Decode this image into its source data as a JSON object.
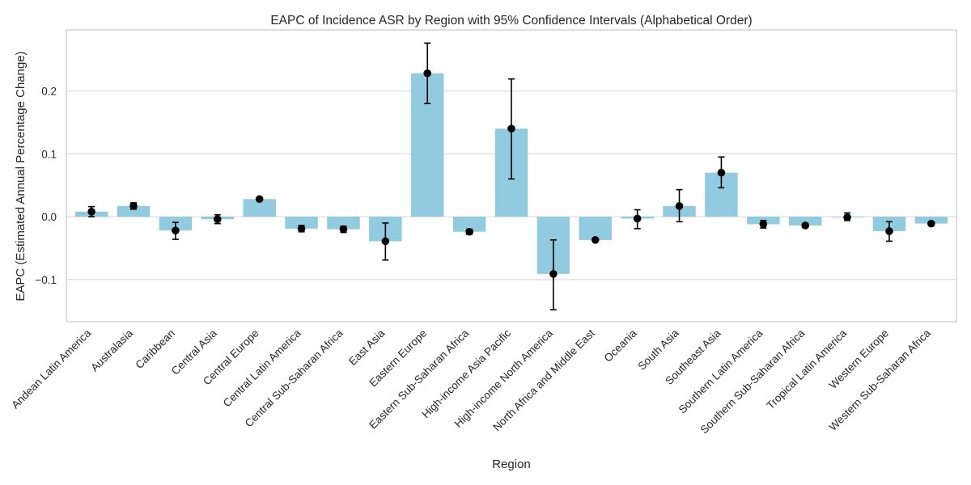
{
  "chart_data": {
    "type": "bar",
    "title": "EAPC of Incidence ASR by Region with 95% Confidence Intervals (Alphabetical Order)",
    "xlabel": "Region",
    "ylabel": "EAPC (Estimated Annual Percentage Change)",
    "ylim": [
      -0.167,
      0.297
    ],
    "yticks": [
      -0.1,
      0.0,
      0.1,
      0.2
    ],
    "ytick_labels": [
      "−0.1",
      "0.0",
      "0.1",
      "0.2"
    ],
    "grid": true,
    "categories": [
      "Andean Latin America",
      "Australasia",
      "Caribbean",
      "Central Asia",
      "Central Europe",
      "Central Latin America",
      "Central Sub-Saharan Africa",
      "East Asia",
      "Eastern Europe",
      "Eastern Sub-Saharan Africa",
      "High-income Asia Pacific",
      "High-income North America",
      "North Africa and Middle East",
      "Oceania",
      "South Asia",
      "Southeast Asia",
      "Southern Latin America",
      "Southern Sub-Saharan Africa",
      "Tropical Latin America",
      "Western Europe",
      "Western Sub-Saharan Africa"
    ],
    "values": [
      0.008,
      0.017,
      -0.022,
      -0.004,
      0.028,
      -0.019,
      -0.02,
      -0.039,
      0.228,
      -0.024,
      0.14,
      -0.091,
      -0.037,
      -0.003,
      0.017,
      0.07,
      -0.012,
      -0.014,
      -0.001,
      -0.023,
      -0.011
    ],
    "ci_lower": [
      0.0,
      0.012,
      -0.036,
      -0.011,
      0.026,
      -0.024,
      -0.025,
      -0.069,
      0.18,
      -0.028,
      0.06,
      -0.148,
      -0.038,
      -0.019,
      -0.008,
      0.046,
      -0.018,
      -0.017,
      -0.006,
      -0.039,
      -0.014
    ],
    "ci_upper": [
      0.016,
      0.022,
      -0.009,
      0.003,
      0.03,
      -0.014,
      -0.015,
      -0.01,
      0.276,
      -0.02,
      0.219,
      -0.037,
      -0.036,
      0.011,
      0.043,
      0.095,
      -0.006,
      -0.011,
      0.006,
      -0.008,
      -0.008
    ],
    "colors": {
      "bar": "#92cadf",
      "point": "#000000",
      "grid": "#d4d4d4",
      "spine": "#c8c8c8",
      "text": "#262626"
    }
  }
}
